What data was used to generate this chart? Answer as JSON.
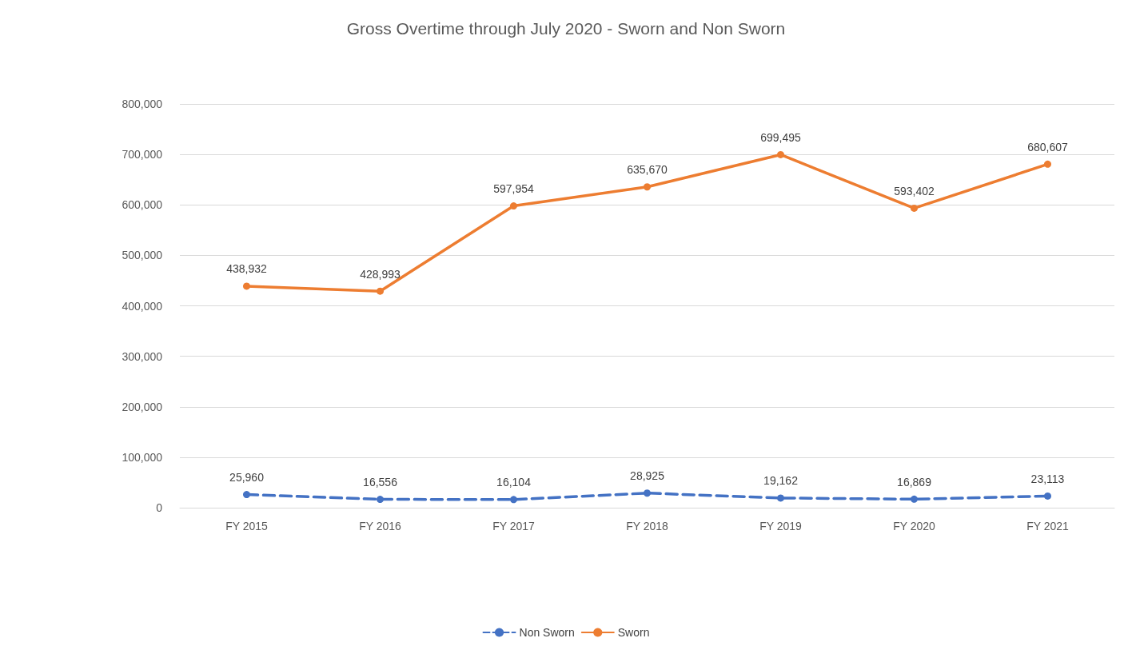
{
  "chart_data": {
    "type": "line",
    "title": "Gross Overtime through July 2020 - Sworn and Non Sworn",
    "categories": [
      "FY 2015",
      "FY 2016",
      "FY 2017",
      "FY 2018",
      "FY 2019",
      "FY 2020",
      "FY 2021"
    ],
    "series": [
      {
        "name": "Non Sworn",
        "color": "#4472c4",
        "line_style": "dashed",
        "values": [
          25960,
          16556,
          16104,
          28925,
          19162,
          16869,
          23113
        ],
        "value_labels": [
          "25,960",
          "16,556",
          "16,104",
          "28,925",
          "19,162",
          "16,869",
          "23,113"
        ]
      },
      {
        "name": "Sworn",
        "color": "#ed7d31",
        "line_style": "solid",
        "values": [
          438932,
          428993,
          597954,
          635670,
          699495,
          593402,
          680607
        ],
        "value_labels": [
          "438,932",
          "428,993",
          "597,954",
          "635,670",
          "699,495",
          "593,402",
          "680,607"
        ]
      }
    ],
    "ylim": [
      0,
      800000
    ],
    "yticks": [
      0,
      {
        "value": 100000,
        "label": "100,000"
      },
      {
        "value": 200000,
        "label": "200,000"
      },
      {
        "value": 300000,
        "label": "300,000"
      },
      {
        "value": 400000,
        "label": "400,000"
      },
      {
        "value": 500000,
        "label": "500,000"
      },
      {
        "value": 600000,
        "label": "600,000"
      },
      {
        "value": 700000,
        "label": "700,000"
      },
      {
        "value": 800000,
        "label": "800,000"
      }
    ],
    "grid": "y",
    "legend": "bottom",
    "marker": "circle"
  }
}
